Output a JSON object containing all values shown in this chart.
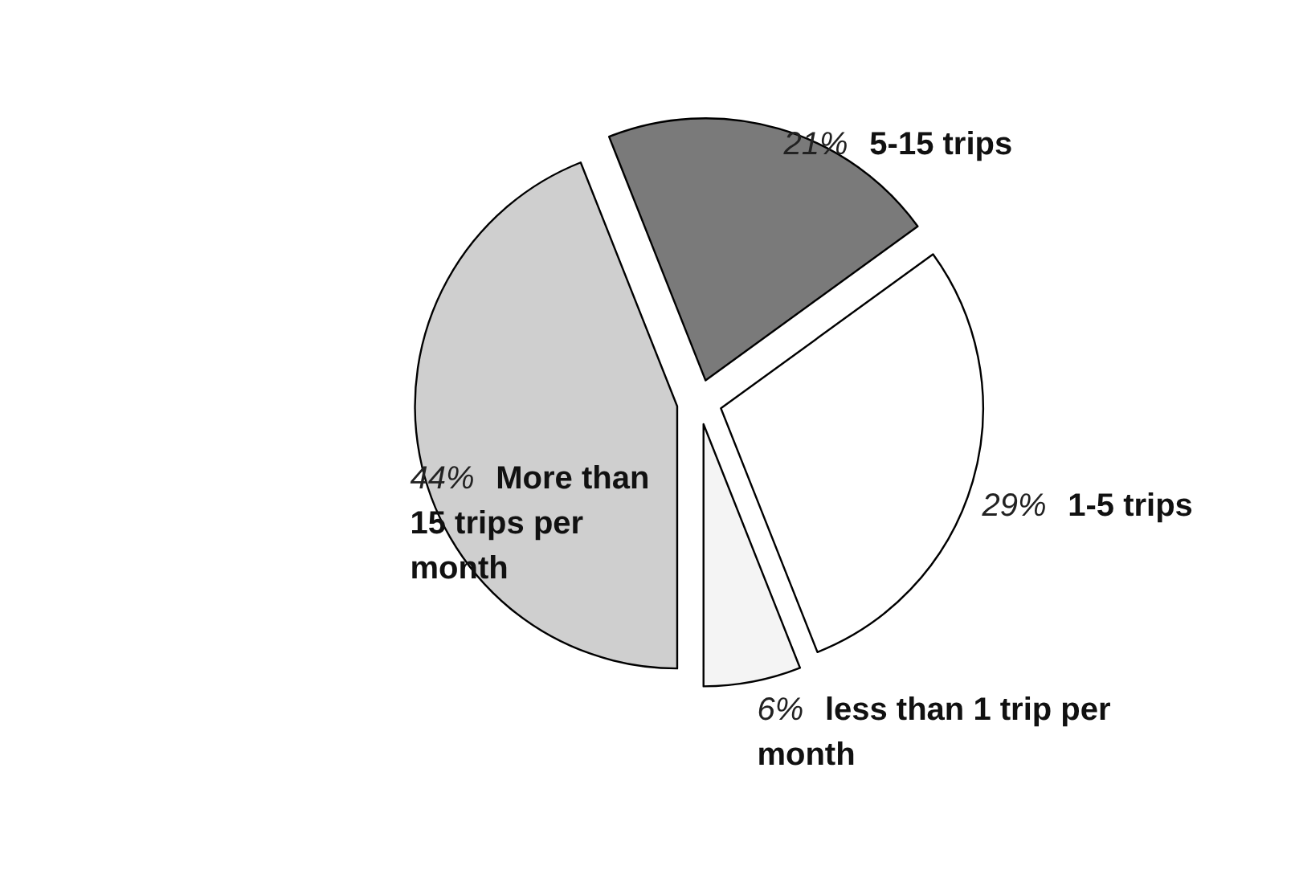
{
  "chart_data": {
    "type": "pie",
    "categories": [
      "5-15 trips",
      "1-5 trips",
      "less than 1 trip per month",
      "More than 15 trips per month"
    ],
    "values": [
      21,
      29,
      6,
      44
    ],
    "colors": [
      "#7a7a7a",
      "#ffffff",
      "#f4f4f4",
      "#cfcfcf"
    ],
    "value_labels": [
      "21%",
      "29%",
      "6%",
      "44%"
    ],
    "legend": false
  }
}
